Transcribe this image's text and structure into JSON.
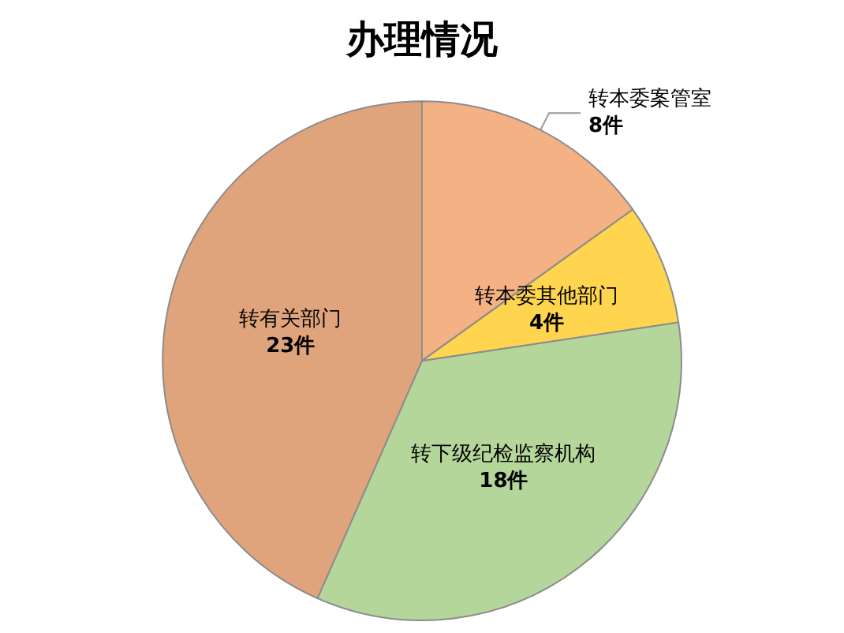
{
  "chart_data": {
    "type": "pie",
    "title": "办理情况",
    "categories": [
      "转本委案管室",
      "转本委其他部门",
      "转下级纪检监察机构",
      "转有关部门"
    ],
    "values": [
      8,
      4,
      18,
      23
    ],
    "value_labels": [
      "8件",
      "4件",
      "18件",
      "23件"
    ],
    "colors": [
      "#f4b183",
      "#ffd54f",
      "#b5d69a",
      "#e0a47c"
    ],
    "legend": false
  }
}
